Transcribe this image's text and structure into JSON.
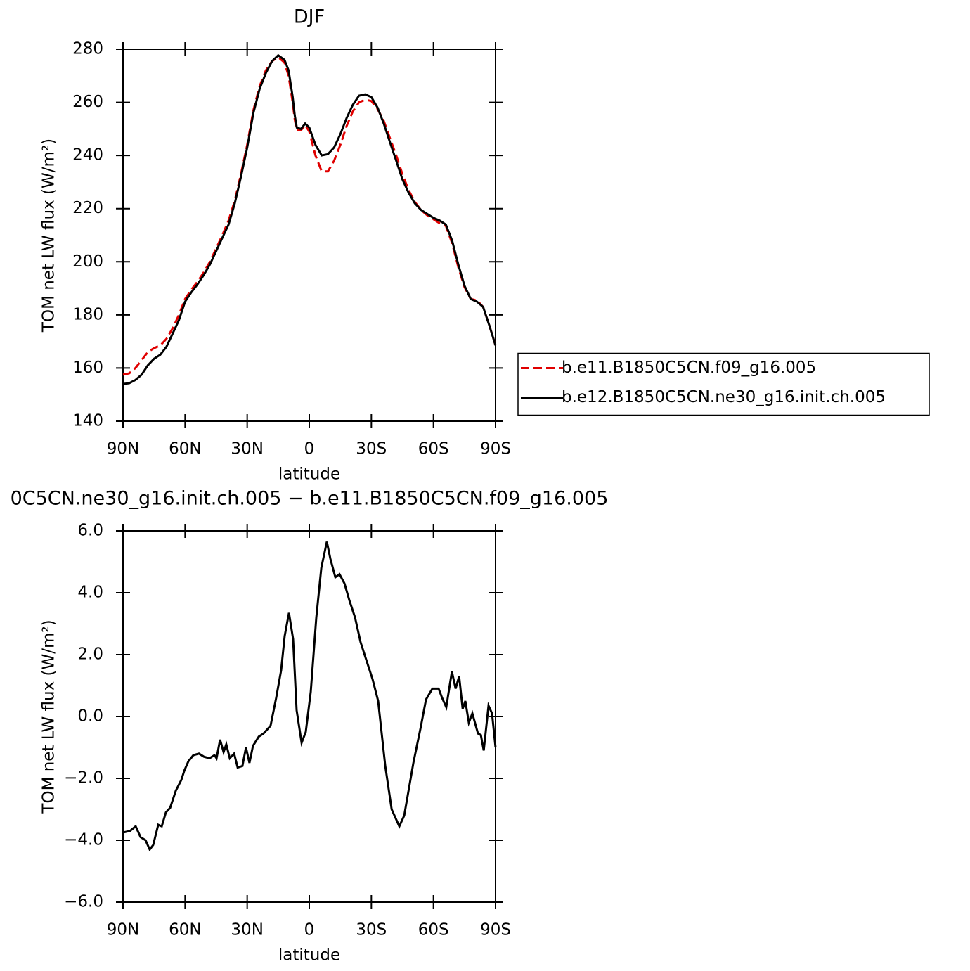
{
  "chart_data": [
    {
      "type": "line",
      "title": "DJF",
      "x_label": "latitude",
      "y_label": "TOM net LW flux (W/m²)",
      "xlim": [
        90,
        -90
      ],
      "ylim": [
        140,
        280
      ],
      "xticks": [
        {
          "value": 90,
          "label": "90N"
        },
        {
          "value": 60,
          "label": "60N"
        },
        {
          "value": 30,
          "label": "30N"
        },
        0,
        {
          "value": -30,
          "label": "30S"
        },
        {
          "value": -60,
          "label": "60S"
        },
        {
          "value": -90,
          "label": "90S"
        }
      ],
      "yticks": [
        140,
        160,
        180,
        200,
        220,
        240,
        260,
        280
      ],
      "legend": "right",
      "x": [
        90,
        87,
        84,
        81,
        78,
        75,
        72,
        69,
        66,
        63,
        60,
        57,
        54,
        51,
        48,
        45,
        42,
        39,
        36,
        33,
        30,
        27,
        24,
        21,
        18,
        15,
        12,
        10,
        8,
        7,
        6,
        4,
        2,
        0,
        -3,
        -6,
        -9,
        -12,
        -15,
        -18,
        -21,
        -24,
        -27,
        -30,
        -33,
        -36,
        -39,
        -42,
        -45,
        -48,
        -51,
        -54,
        -57,
        -60,
        -63,
        -66,
        -69,
        -72,
        -75,
        -78,
        -81,
        -84,
        -87,
        -90
      ],
      "series": [
        {
          "name": "b.e11.B1850C5CN.f09_g16.005",
          "color": "#e00000",
          "linestyle": "dashed",
          "values": [
            157.5,
            158,
            160,
            163,
            166,
            167.5,
            168.5,
            171,
            175,
            180,
            186,
            189.5,
            192.5,
            196,
            200,
            205,
            210,
            215.5,
            223,
            233,
            244,
            257,
            266,
            272,
            275.5,
            277,
            275,
            270,
            260,
            253.5,
            249.5,
            249.5,
            251.5,
            249,
            240,
            234,
            234,
            238,
            244,
            251,
            256.5,
            260,
            261,
            260.5,
            257.5,
            253,
            246.5,
            240,
            233,
            227,
            222.5,
            219.5,
            217.5,
            216,
            214.5,
            213.5,
            207,
            198,
            190.5,
            186,
            185.5,
            183,
            176,
            168.5
          ]
        },
        {
          "name": "b.e12.B1850C5CN.ne30_g16.init.ch.005",
          "color": "#000000",
          "linestyle": "solid",
          "values": [
            154,
            154.3,
            155.5,
            157.5,
            161,
            163.5,
            165,
            168,
            173,
            178,
            185,
            188.5,
            191.5,
            195,
            199,
            204,
            209,
            214,
            222,
            232,
            243,
            256,
            265,
            271,
            275.5,
            277.7,
            276,
            272,
            262,
            255,
            250.5,
            250,
            252,
            250.5,
            244,
            240,
            240.5,
            243,
            248,
            254,
            259,
            262.5,
            263,
            262,
            258,
            252,
            245,
            238,
            231,
            226,
            222,
            219.5,
            218,
            216.5,
            215.5,
            214,
            208,
            199,
            191,
            186,
            185,
            183,
            176,
            168.5
          ]
        }
      ]
    },
    {
      "type": "line",
      "title": "0C5CN.ne30_g16.init.ch.005 − b.e11.B1850C5CN.f09_g16.005",
      "x_label": "latitude",
      "y_label": "TOM net LW flux (W/m²)",
      "xlim": [
        90,
        -90
      ],
      "ylim": [
        -6,
        6
      ],
      "xticks": [
        {
          "value": 90,
          "label": "90N"
        },
        {
          "value": 60,
          "label": "60N"
        },
        {
          "value": 30,
          "label": "30N"
        },
        0,
        {
          "value": -30,
          "label": "30S"
        },
        {
          "value": -60,
          "label": "60S"
        },
        {
          "value": -90,
          "label": "90S"
        }
      ],
      "yticks": [
        {
          "value": -6,
          "label": "−6.0"
        },
        {
          "value": -4,
          "label": "−4.0"
        },
        {
          "value": -2,
          "label": "−2.0"
        },
        {
          "value": 0,
          "label": "0.0"
        },
        {
          "value": 2,
          "label": "2.0"
        },
        {
          "value": 4,
          "label": "4.0"
        },
        {
          "value": 6,
          "label": "6.0"
        }
      ],
      "x": [
        90,
        86.6,
        83.9,
        81.5,
        79.1,
        77.1,
        75.4,
        73,
        71.3,
        69.3,
        67.2,
        64.5,
        61.8,
        60.4,
        58.4,
        56,
        53.3,
        50.9,
        48.2,
        45.8,
        44.8,
        43.1,
        41.4,
        40.1,
        38.4,
        36.3,
        34.6,
        32.3,
        30.6,
        28.9,
        27.2,
        24.4,
        22.1,
        18.7,
        16,
        13.6,
        11.9,
        9.8,
        7.8,
        6.1,
        3.7,
        1.7,
        -0.7,
        -3.4,
        -5.8,
        -8.5,
        -10.2,
        -12.6,
        -14.6,
        -17,
        -19.4,
        -22.1,
        -24.8,
        -27.2,
        -30.6,
        -33.3,
        -36.7,
        -39.8,
        -43.5,
        -45.9,
        -50.3,
        -53.7,
        -56.4,
        -59.5,
        -62.5,
        -64.2,
        -66.2,
        -68.9,
        -70.7,
        -72.4,
        -74.1,
        -75.4,
        -77.1,
        -78.8,
        -81.5,
        -82.9,
        -84.3,
        -86.6,
        -88.3,
        -90
      ],
      "series": [
        {
          "color": "#000000",
          "linestyle": "solid",
          "values": [
            -3.75,
            -3.7,
            -3.55,
            -3.9,
            -4.0,
            -4.3,
            -4.15,
            -3.5,
            -3.55,
            -3.1,
            -2.95,
            -2.4,
            -2.05,
            -1.75,
            -1.45,
            -1.25,
            -1.2,
            -1.3,
            -1.35,
            -1.25,
            -1.35,
            -0.75,
            -1.15,
            -0.9,
            -1.35,
            -1.2,
            -1.65,
            -1.6,
            -1.0,
            -1.5,
            -0.95,
            -0.65,
            -0.55,
            -0.3,
            0.6,
            1.5,
            2.6,
            3.35,
            2.5,
            0.2,
            -0.85,
            -0.5,
            0.8,
            3.2,
            4.8,
            5.65,
            5.1,
            4.5,
            4.6,
            4.3,
            3.75,
            3.2,
            2.4,
            1.9,
            1.2,
            0.5,
            -1.6,
            -3.0,
            -3.55,
            -3.2,
            -1.5,
            -0.4,
            0.55,
            0.9,
            0.9,
            0.6,
            0.3,
            1.45,
            0.9,
            1.3,
            0.25,
            0.5,
            -0.2,
            0.1,
            -0.55,
            -0.6,
            -1.1,
            0.35,
            0.1,
            -1.0
          ]
        }
      ]
    }
  ]
}
